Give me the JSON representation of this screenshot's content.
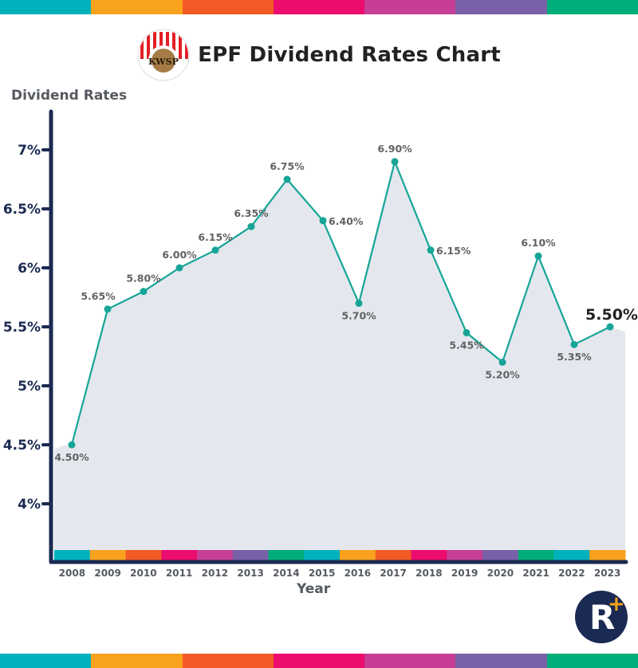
{
  "header": {
    "title": "EPF Dividend Rates Chart",
    "logo_icon": "kwsp-logo-icon"
  },
  "stripe_colors": [
    "#00b2bd",
    "#f9a21e",
    "#f15a24",
    "#ec0c6e",
    "#c63e95",
    "#7a60a8",
    "#00ae7b"
  ],
  "brand": {
    "letter": "R",
    "plus": "+",
    "bg": "#1b2a52",
    "accent": "#f7a21b"
  },
  "colors": {
    "line": "#16a598",
    "area": "#e4e8ee",
    "axis": "#1b2a52",
    "label": "#626262",
    "highlight": "#222222"
  },
  "chart_data": {
    "type": "line",
    "title": "EPF Dividend Rates Chart",
    "xlabel": "Year",
    "ylabel": "Dividend Rates",
    "x": [
      "2008",
      "2009",
      "2010",
      "2011",
      "2012",
      "2013",
      "2014",
      "2015",
      "2016",
      "2017",
      "2018",
      "2019",
      "2020",
      "2021",
      "2022",
      "2023"
    ],
    "series": [
      {
        "name": "Dividend Rate (%)",
        "values": [
          4.5,
          5.65,
          5.8,
          6.0,
          6.15,
          6.35,
          6.75,
          6.4,
          5.7,
          6.9,
          6.15,
          5.45,
          5.2,
          6.1,
          5.35,
          5.5
        ]
      }
    ],
    "data_labels": [
      "4.50%",
      "5.65%",
      "5.80%",
      "6.00%",
      "6.15%",
      "6.35%",
      "6.75%",
      "6.40%",
      "5.70%",
      "6.90%",
      "6.15%",
      "5.45%",
      "5.20%",
      "6.10%",
      "5.35%",
      "5.50%"
    ],
    "highlight_last": true,
    "yticks": [
      4,
      4.5,
      5,
      5.5,
      6,
      6.5,
      7
    ],
    "ytick_labels": [
      "4%",
      "4.5%",
      "5%",
      "5.5%",
      "6%",
      "6.5%",
      "7%"
    ],
    "ylim": [
      3.6,
      7.35
    ],
    "grid": false,
    "legend": "none",
    "year_band_colors": [
      "#00b2bd",
      "#f9a21e",
      "#f15a24",
      "#ec0c6e",
      "#c63e95",
      "#7a60a8",
      "#00ae7b",
      "#00b2bd",
      "#f9a21e",
      "#f15a24",
      "#ec0c6e",
      "#c63e95",
      "#7a60a8",
      "#00ae7b",
      "#00b2bd",
      "#f9a21e"
    ]
  }
}
